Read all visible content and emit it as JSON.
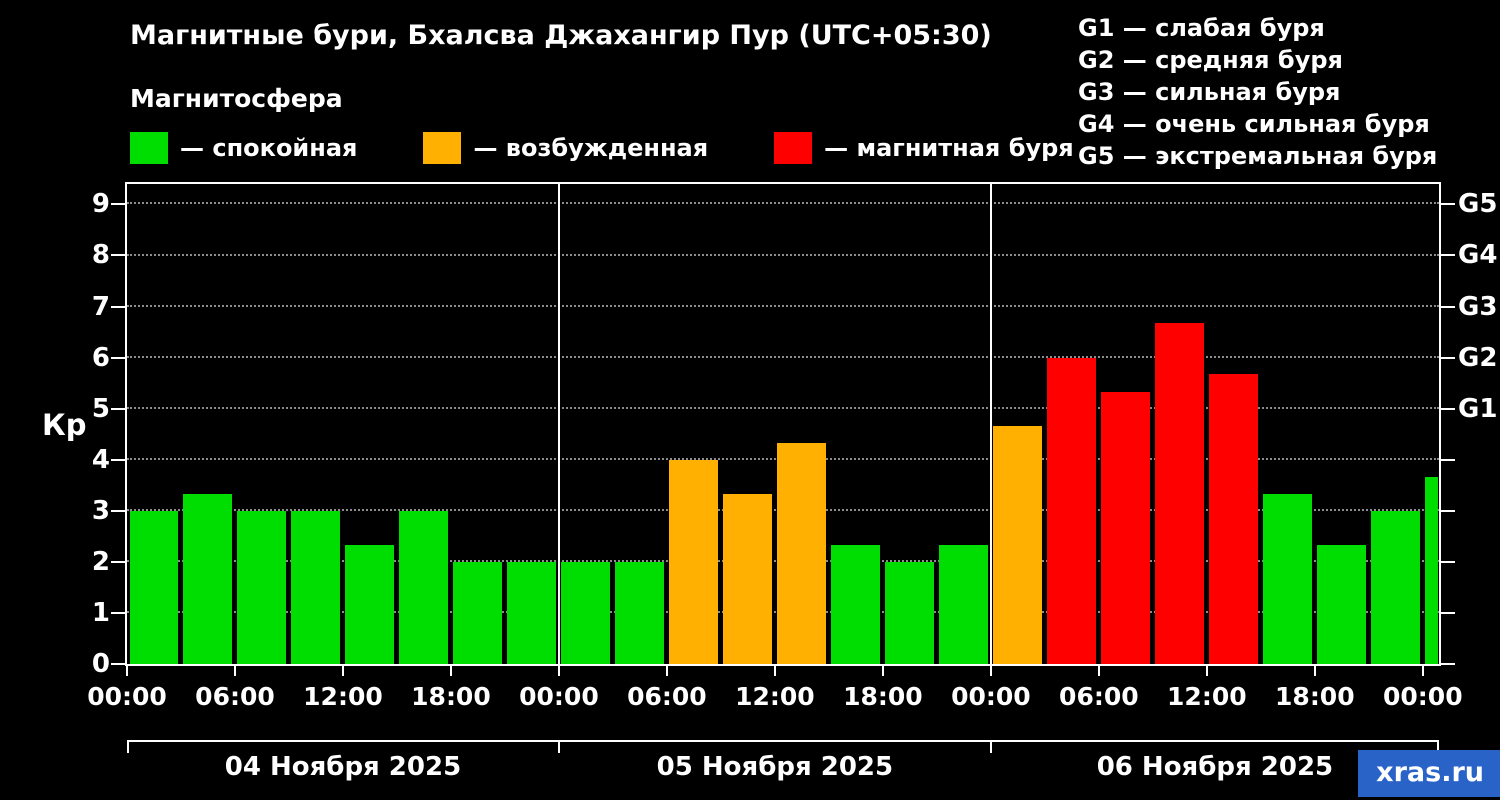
{
  "header": {
    "title": "Магнитные бури, Бхалсва Джахангир Пур (UTC+05:30)",
    "subtitle": "Магнитосфера"
  },
  "legend": {
    "items": [
      {
        "label": "— спокойная",
        "color": "#00dd00"
      },
      {
        "label": "— возбужденная",
        "color": "#ffb000"
      },
      {
        "label": "— магнитная буря",
        "color": "#ff0000"
      }
    ]
  },
  "g_legend": [
    "G1 — слабая буря",
    "G2 — средняя буря",
    "G3 — сильная буря",
    "G4 — очень сильная буря",
    "G5 — экстремальная буря"
  ],
  "watermark": "xras.ru",
  "chart_data": {
    "type": "bar",
    "title": "Магнитные бури, Бхалсва Джахангир Пур (UTC+05:30)",
    "subtitle": "Магнитосфера",
    "ylabel": "Кр",
    "ylim": [
      0,
      9.4
    ],
    "yticks": [
      0,
      1,
      2,
      3,
      4,
      5,
      6,
      7,
      8,
      9
    ],
    "right_axis_labels": [
      {
        "label": "G1",
        "kp": 5
      },
      {
        "label": "G2",
        "kp": 6
      },
      {
        "label": "G3",
        "kp": 7
      },
      {
        "label": "G4",
        "kp": 8
      },
      {
        "label": "G5",
        "kp": 9
      }
    ],
    "x_tick_labels": [
      "00:00",
      "06:00",
      "12:00",
      "18:00",
      "00:00",
      "06:00",
      "12:00",
      "18:00",
      "00:00",
      "06:00",
      "12:00",
      "18:00",
      "00:00"
    ],
    "dates": [
      "04 Ноября 2025",
      "05 Ноября 2025",
      "06 Ноября 2025"
    ],
    "hours_per_bar": 3,
    "grid": true,
    "series_colors": {
      "green": "#00dd00",
      "orange": "#ffb000",
      "red": "#ff0000"
    },
    "bars": [
      {
        "kp": 3.0,
        "level": "green"
      },
      {
        "kp": 3.33,
        "level": "green"
      },
      {
        "kp": 3.0,
        "level": "green"
      },
      {
        "kp": 3.0,
        "level": "green"
      },
      {
        "kp": 2.33,
        "level": "green"
      },
      {
        "kp": 3.0,
        "level": "green"
      },
      {
        "kp": 2.0,
        "level": "green"
      },
      {
        "kp": 2.0,
        "level": "green"
      },
      {
        "kp": 2.0,
        "level": "green"
      },
      {
        "kp": 2.0,
        "level": "green"
      },
      {
        "kp": 4.0,
        "level": "orange"
      },
      {
        "kp": 3.33,
        "level": "orange"
      },
      {
        "kp": 4.33,
        "level": "orange"
      },
      {
        "kp": 2.33,
        "level": "green"
      },
      {
        "kp": 2.0,
        "level": "green"
      },
      {
        "kp": 2.33,
        "level": "green"
      },
      {
        "kp": 4.67,
        "level": "orange"
      },
      {
        "kp": 6.0,
        "level": "red"
      },
      {
        "kp": 5.33,
        "level": "red"
      },
      {
        "kp": 6.67,
        "level": "red"
      },
      {
        "kp": 5.67,
        "level": "red"
      },
      {
        "kp": 3.33,
        "level": "green"
      },
      {
        "kp": 2.33,
        "level": "green"
      },
      {
        "kp": 3.0,
        "level": "green"
      },
      {
        "kp": 3.67,
        "level": "green",
        "partial": true
      }
    ]
  }
}
